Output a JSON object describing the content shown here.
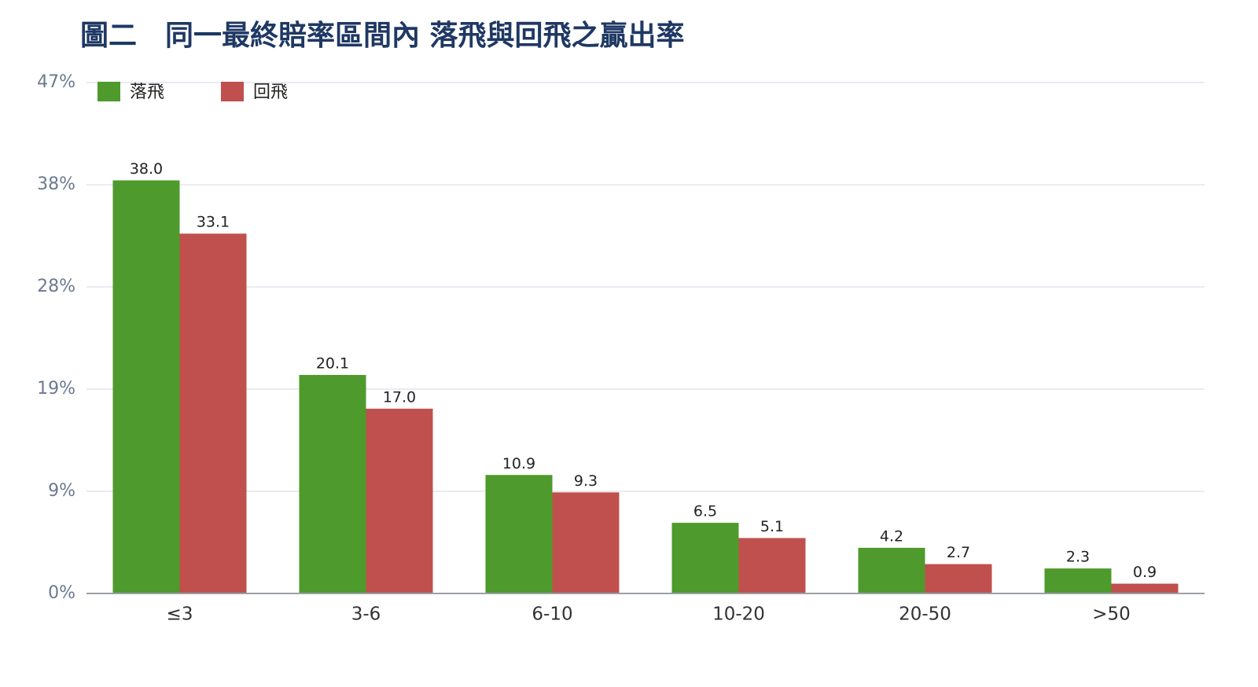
{
  "chart_data": {
    "type": "bar",
    "title": "圖二　同一最終賠率區間內 落飛與回飛之贏出率",
    "categories": [
      "≤3",
      "3-6",
      "6-10",
      "10-20",
      "20-50",
      ">50"
    ],
    "series": [
      {
        "name": "落飛",
        "color": "#4e9a2c",
        "values": [
          38.0,
          20.1,
          10.9,
          6.5,
          4.2,
          2.3
        ],
        "value_labels": [
          "38.0",
          "20.1",
          "10.9",
          "6.5",
          "4.2",
          "2.3"
        ]
      },
      {
        "name": "回飛",
        "color": "#c0504d",
        "values": [
          33.1,
          17.0,
          9.3,
          5.1,
          2.7,
          0.9
        ],
        "value_labels": [
          "33.1",
          "17.0",
          "9.3",
          "5.1",
          "2.7",
          "0.9"
        ]
      }
    ],
    "ylim": [
      0,
      47
    ],
    "yticks": [
      {
        "value": 0,
        "label": "0%"
      },
      {
        "value": 9.4,
        "label": "9%"
      },
      {
        "value": 18.8,
        "label": "19%"
      },
      {
        "value": 28.2,
        "label": "28%"
      },
      {
        "value": 37.6,
        "label": "38%"
      },
      {
        "value": 47,
        "label": "47%"
      }
    ],
    "grid": true,
    "legend": "top-left"
  }
}
